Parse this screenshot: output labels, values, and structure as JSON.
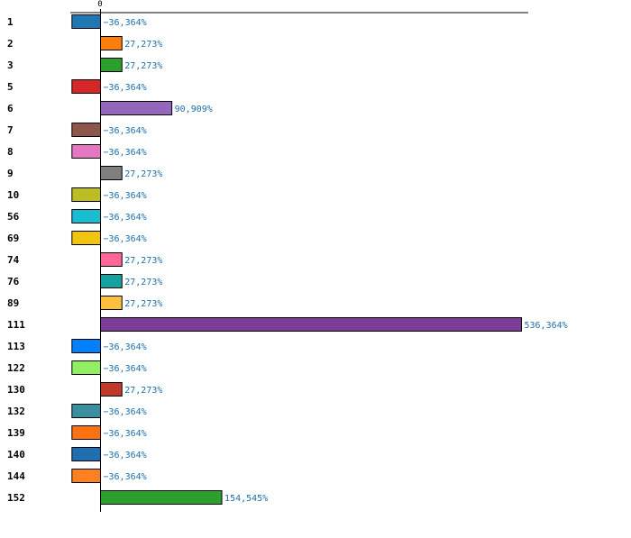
{
  "chart_data": {
    "type": "bar",
    "orientation": "horizontal",
    "grid": false,
    "x_ticks": [
      "0"
    ],
    "categories": [
      "1",
      "2",
      "3",
      "5",
      "6",
      "7",
      "8",
      "9",
      "10",
      "56",
      "69",
      "74",
      "76",
      "89",
      "111",
      "113",
      "122",
      "130",
      "132",
      "139",
      "140",
      "144",
      "152"
    ],
    "values": [
      -36.364,
      27.273,
      27.273,
      -36.364,
      90.909,
      -36.364,
      -36.364,
      27.273,
      -36.364,
      -36.364,
      -36.364,
      27.273,
      27.273,
      27.273,
      536.364,
      -36.364,
      -36.364,
      27.273,
      -36.364,
      -36.364,
      -36.364,
      -36.364,
      154.545
    ],
    "value_labels": [
      "−36,364%",
      "27,273%",
      "27,273%",
      "−36,364%",
      "90,909%",
      "−36,364%",
      "−36,364%",
      "27,273%",
      "−36,364%",
      "−36,364%",
      "−36,364%",
      "27,273%",
      "27,273%",
      "27,273%",
      "536,364%",
      "−36,364%",
      "−36,364%",
      "27,273%",
      "−36,364%",
      "−36,364%",
      "−36,364%",
      "−36,364%",
      "154,545%"
    ],
    "colors": [
      "#1f77b4",
      "#ff7f0e",
      "#2ca02c",
      "#d62728",
      "#9467bd",
      "#8c564b",
      "#e377c2",
      "#7f7f7f",
      "#bcbd22",
      "#17becf",
      "#f1c40f",
      "#ff6699",
      "#17a2a2",
      "#ffc040",
      "#7d3c98",
      "#007fff",
      "#90ee60",
      "#c0392b",
      "#3a8fa0",
      "#ff7010",
      "#1f6fb0",
      "#ff8020",
      "#2ca02c"
    ],
    "xlabel": "",
    "ylabel": ""
  }
}
